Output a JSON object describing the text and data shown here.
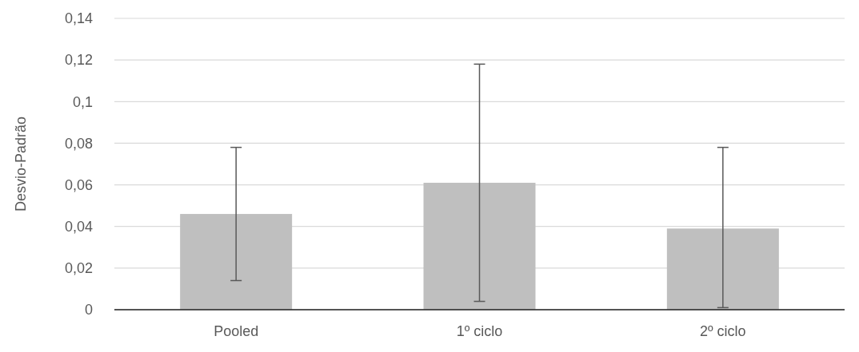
{
  "chart_data": {
    "type": "bar",
    "ylabel": "Desvio-Padrão",
    "categories": [
      "Pooled",
      "1º ciclo",
      "2º ciclo"
    ],
    "values": [
      0.046,
      0.061,
      0.039
    ],
    "errors": [
      [
        0.014,
        0.078
      ],
      [
        0.004,
        0.118
      ],
      [
        0.001,
        0.078
      ]
    ],
    "color": "#bfbfbf",
    "ylim": [
      0,
      0.14
    ],
    "yticks": [
      0,
      {
        "value": 0.02,
        "label": "0,02"
      },
      {
        "value": 0.04,
        "label": "0,04"
      },
      {
        "value": 0.06,
        "label": "0,06"
      },
      {
        "value": 0.08,
        "label": "0,08"
      },
      {
        "value": 0.1,
        "label": "0,1"
      },
      {
        "value": 0.12,
        "label": "0,12"
      },
      {
        "value": 0.14,
        "label": "0,14"
      }
    ],
    "grid": "y"
  }
}
